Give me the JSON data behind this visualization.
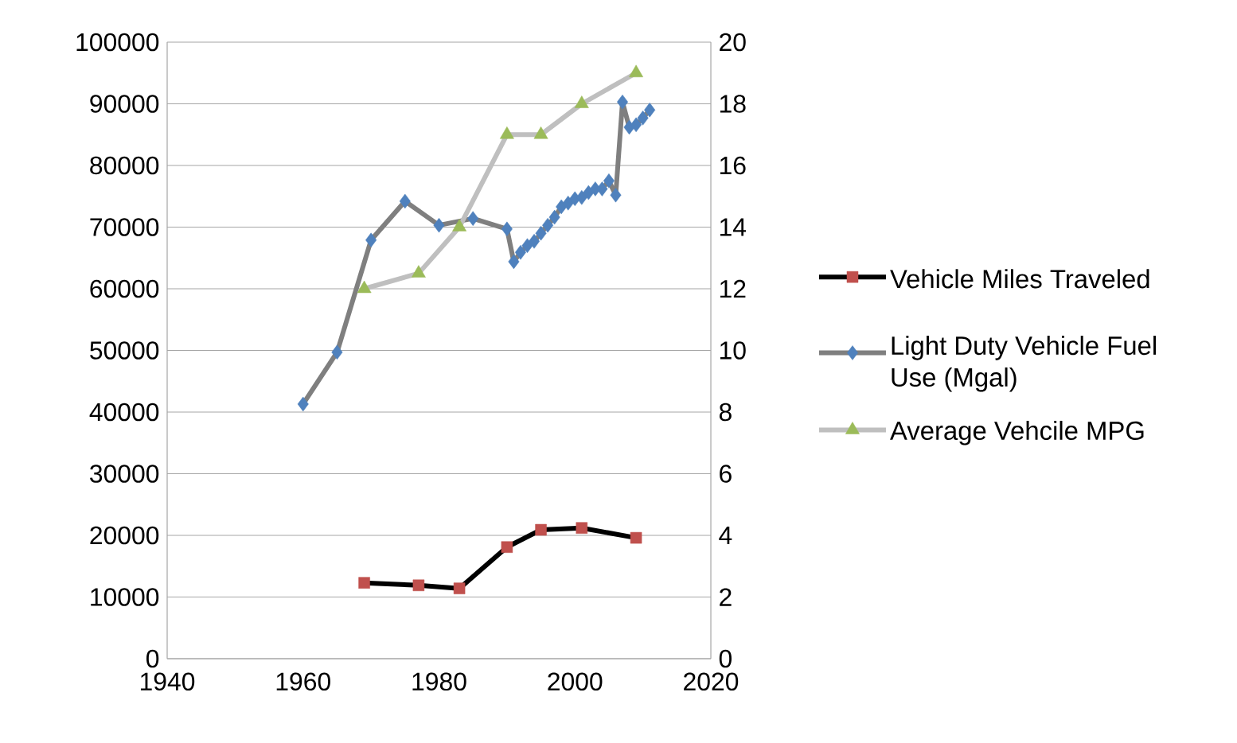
{
  "chart_data": {
    "type": "line",
    "xlim": [
      1940,
      2020
    ],
    "xticks": [
      1940,
      1960,
      1980,
      2000,
      2020
    ],
    "ylim": [
      0,
      100000
    ],
    "yticks": [
      0,
      10000,
      20000,
      30000,
      40000,
      50000,
      60000,
      70000,
      80000,
      90000,
      100000
    ],
    "y2lim": [
      0,
      20
    ],
    "y2ticks": [
      0,
      2,
      4,
      6,
      8,
      10,
      12,
      14,
      16,
      18,
      20
    ],
    "grid": "y",
    "legend": "right",
    "series": [
      {
        "name": "Vehicle Miles Traveled",
        "color": "#c0504d",
        "marker": "square",
        "x": [
          1969,
          1977,
          1983,
          1990,
          1995,
          2001,
          2009
        ],
        "values": [
          12300,
          11900,
          11400,
          18100,
          20900,
          21200,
          19600
        ]
      },
      {
        "name": "Light Duty Vehicle Fuel Use (Mgal)",
        "color": "#4f81bd",
        "marker": "diamond",
        "x": [
          1960,
          1965,
          1970,
          1975,
          1980,
          1985,
          1990,
          1991,
          1992,
          1993,
          1994,
          1995,
          1996,
          1997,
          1998,
          1999,
          2000,
          2001,
          2002,
          2003,
          2004,
          2005,
          2006,
          2007,
          2008,
          2009,
          2010,
          2011
        ],
        "values": [
          41300,
          49700,
          67900,
          74200,
          70300,
          71400,
          69700,
          64400,
          65900,
          67000,
          67700,
          69000,
          70300,
          71600,
          73300,
          73900,
          74600,
          74800,
          75600,
          76200,
          76200,
          77500,
          75200,
          90300,
          86200,
          86600,
          87700,
          89000
        ]
      },
      {
        "name": "Average Vehcile MPG",
        "color": "#9bbb59",
        "marker": "triangle",
        "axis": "y2",
        "x": [
          1969,
          1977,
          1983,
          1990,
          1995,
          2001,
          2009
        ],
        "values": [
          12,
          12.5,
          14,
          17,
          17,
          18,
          19
        ]
      }
    ]
  }
}
